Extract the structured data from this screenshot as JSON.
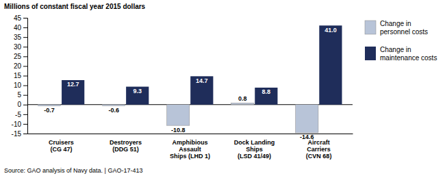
{
  "chart_data": {
    "type": "bar",
    "categories": [
      "Cruisers\n(CG 47)",
      "Destroyers\n(DDG 51)",
      "Amphibious\nAssault\nShips (LHD 1)",
      "Dock Landing\nShips\n(LSD 41/49)",
      "Aircraft\nCarriers\n(CVN 68)"
    ],
    "series": [
      {
        "name": "Change in\npersonnel costs",
        "color": "#b8c4d8",
        "values": [
          -0.7,
          -0.6,
          -10.8,
          0.8,
          -14.6
        ]
      },
      {
        "name": "Change in\nmaintenance costs",
        "color": "#1f2d5a",
        "values": [
          12.7,
          9.3,
          14.7,
          8.8,
          41.0
        ],
        "value_labels": [
          "12.7",
          "9.3",
          "14.7",
          "8.8",
          "41.0"
        ]
      }
    ],
    "ylabel": "Millions of constant fiscal year 2015 dollars",
    "ylim": [
      -15,
      45
    ],
    "yticks": [
      -15,
      -10,
      -5,
      0,
      5,
      10,
      15,
      20,
      25,
      30,
      35,
      40,
      45
    ],
    "annotations": [
      "Source: GAO analysis of Navy data.  |  GAO-17-413"
    ],
    "data_labels": true,
    "legend": "right",
    "grid": false
  }
}
